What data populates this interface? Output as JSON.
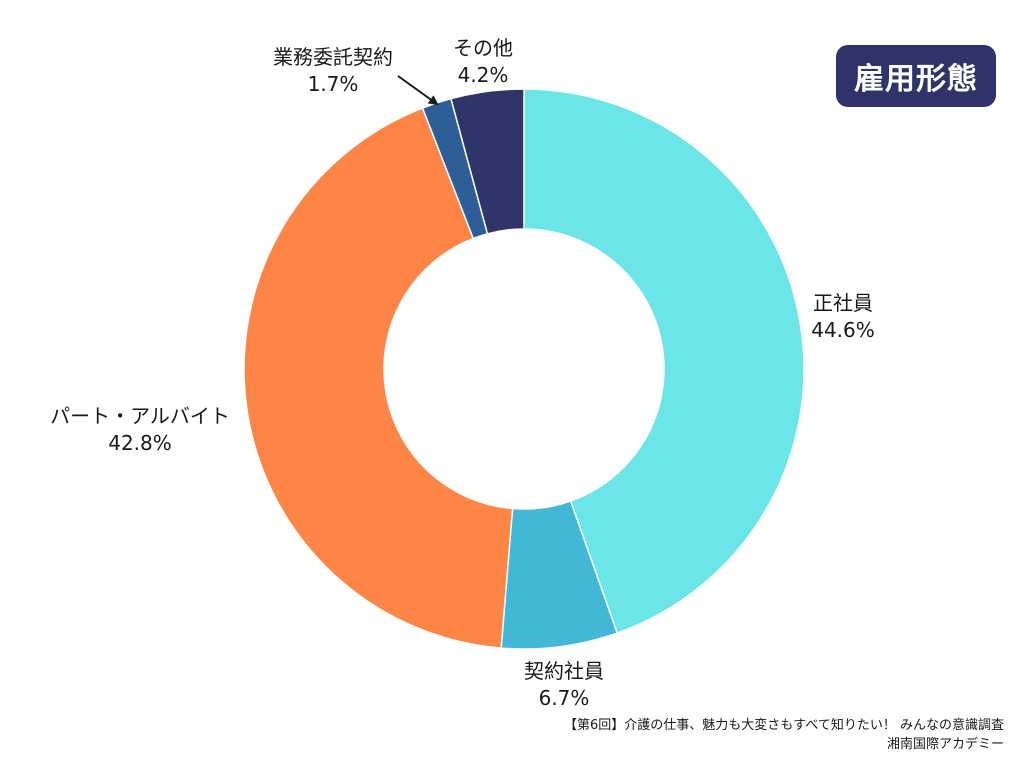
{
  "title_badge": {
    "text": "雇用形態",
    "bg_color": "#2e3469"
  },
  "chart_data": {
    "type": "pie",
    "donut": true,
    "title": "雇用形態",
    "start": "12 o'clock",
    "direction": "clockwise",
    "slices": [
      {
        "name": "正社員",
        "value": 44.6,
        "label": "44.6%",
        "color": "#6be5e8"
      },
      {
        "name": "契約社員",
        "value": 6.7,
        "label": "6.7%",
        "color": "#42b8d6"
      },
      {
        "name": "パート・アルバイト",
        "value": 42.8,
        "label": "42.8%",
        "color": "#ff8547"
      },
      {
        "name": "業務委託契約",
        "value": 1.7,
        "label": "1.7%",
        "color": "#2d5e98"
      },
      {
        "name": "その他",
        "value": 4.2,
        "label": "4.2%",
        "color": "#2f3569"
      }
    ]
  },
  "source": {
    "line1": "【第6回】介護の仕事、魅力も大変さもすべて知りたい！ みんなの意識調査",
    "line2": "湘南国際アカデミー"
  }
}
